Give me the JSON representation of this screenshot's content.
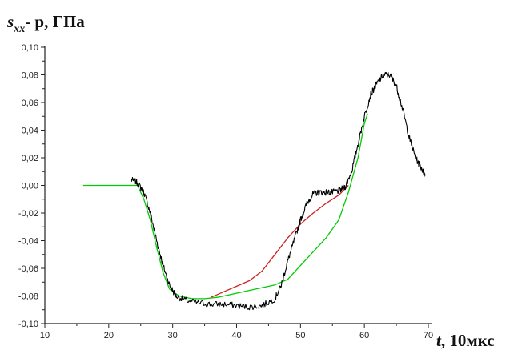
{
  "chart_data": {
    "type": "line",
    "ylabel_main": "s",
    "ylabel_sub": "xx",
    "ylabel_rest": "- p, ГПа",
    "xlabel_var": "t",
    "xlabel_unit": ", 10мкс",
    "xlim": [
      10,
      70
    ],
    "ylim": [
      -0.1,
      0.1
    ],
    "x_ticks": [
      "10",
      "20",
      "30",
      "40",
      "50",
      "60",
      "70"
    ],
    "x_tick_values": [
      10,
      20,
      30,
      40,
      50,
      60,
      70
    ],
    "y_ticks": [
      "0,10",
      "0,08",
      "0,06",
      "0,04",
      "0,02",
      "0,00",
      "-0,02",
      "-0,04",
      "-0,06",
      "-0,08",
      "-0,10"
    ],
    "y_tick_values": [
      0.1,
      0.08,
      0.06,
      0.04,
      0.02,
      0.0,
      -0.02,
      -0.04,
      -0.06,
      -0.08,
      -0.1
    ],
    "grid": false,
    "series": [
      {
        "color": "#00cc00",
        "points": [
          [
            16,
            0.0
          ],
          [
            23.5,
            0.0
          ],
          [
            24.5,
            0.0
          ],
          [
            25.5,
            -0.01
          ],
          [
            26.5,
            -0.025
          ],
          [
            27.5,
            -0.045
          ],
          [
            28.5,
            -0.063
          ],
          [
            29.5,
            -0.075
          ],
          [
            31,
            -0.08
          ],
          [
            33,
            -0.082
          ],
          [
            35,
            -0.082
          ],
          [
            37,
            -0.081
          ],
          [
            40,
            -0.078
          ],
          [
            43,
            -0.075
          ],
          [
            46,
            -0.072
          ],
          [
            48,
            -0.068
          ],
          [
            50,
            -0.058
          ],
          [
            52,
            -0.048
          ],
          [
            54,
            -0.038
          ],
          [
            56,
            -0.025
          ],
          [
            57.5,
            -0.005
          ],
          [
            59,
            0.02
          ],
          [
            60,
            0.045
          ],
          [
            60.5,
            0.052
          ]
        ]
      },
      {
        "color": "#cc2222",
        "points": [
          [
            36,
            -0.081
          ],
          [
            38,
            -0.077
          ],
          [
            40,
            -0.073
          ],
          [
            42,
            -0.069
          ],
          [
            44,
            -0.062
          ],
          [
            46,
            -0.05
          ],
          [
            48,
            -0.038
          ],
          [
            50,
            -0.028
          ],
          [
            52,
            -0.02
          ],
          [
            54,
            -0.013
          ],
          [
            56,
            -0.007
          ],
          [
            57.5,
            0.0
          ]
        ]
      },
      {
        "color": "#000000",
        "noisy": true,
        "points": [
          [
            23.5,
            0.004
          ],
          [
            24.5,
            0.002
          ],
          [
            25.5,
            -0.005
          ],
          [
            26.5,
            -0.02
          ],
          [
            27.5,
            -0.04
          ],
          [
            28.5,
            -0.058
          ],
          [
            29.5,
            -0.072
          ],
          [
            30.5,
            -0.08
          ],
          [
            32,
            -0.083
          ],
          [
            34,
            -0.085
          ],
          [
            36,
            -0.086
          ],
          [
            38,
            -0.086
          ],
          [
            40,
            -0.087
          ],
          [
            42,
            -0.088
          ],
          [
            44,
            -0.087
          ],
          [
            46,
            -0.082
          ],
          [
            47,
            -0.072
          ],
          [
            48,
            -0.055
          ],
          [
            49,
            -0.04
          ],
          [
            50,
            -0.025
          ],
          [
            51,
            -0.013
          ],
          [
            52,
            -0.006
          ],
          [
            53,
            -0.005
          ],
          [
            54,
            -0.005
          ],
          [
            55,
            -0.005
          ],
          [
            56,
            -0.004
          ],
          [
            57,
            -0.001
          ],
          [
            58,
            0.01
          ],
          [
            59,
            0.03
          ],
          [
            60,
            0.05
          ],
          [
            61,
            0.066
          ],
          [
            62,
            0.074
          ],
          [
            63,
            0.08
          ],
          [
            64,
            0.08
          ],
          [
            65,
            0.072
          ],
          [
            66,
            0.055
          ],
          [
            67,
            0.035
          ],
          [
            68,
            0.02
          ],
          [
            69,
            0.012
          ],
          [
            69.5,
            0.007
          ]
        ]
      }
    ]
  }
}
